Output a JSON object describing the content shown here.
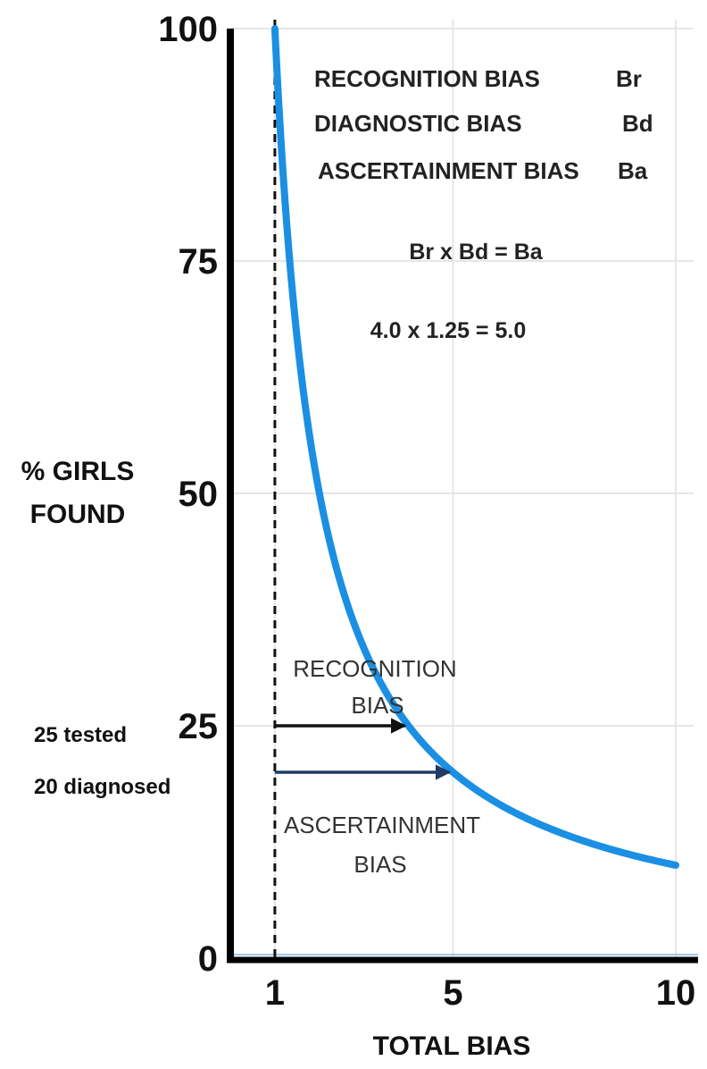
{
  "chart_data": {
    "type": "line",
    "xlabel": "TOTAL BIAS",
    "ylabel_lines": [
      "% GIRLS",
      "FOUND"
    ],
    "xlim": [
      0,
      10
    ],
    "ylim": [
      0,
      100
    ],
    "x_ticks": [
      1,
      5,
      10
    ],
    "y_ticks": [
      0,
      25,
      50,
      75,
      100
    ],
    "grid": true,
    "series": [
      {
        "curve": "y = 100 / x",
        "color": "#1a8fe3",
        "x": [
          1,
          1.25,
          1.5,
          2,
          2.5,
          3,
          4,
          5,
          6,
          7,
          8,
          9,
          10
        ],
        "y": [
          100,
          80,
          66.7,
          50,
          40,
          33.3,
          25,
          20,
          16.7,
          14.3,
          12.5,
          11.1,
          10
        ]
      }
    ],
    "reference_line": {
      "x": 1,
      "style": "dashed"
    },
    "legend_items": [
      {
        "label": "RECOGNITION BIAS",
        "symbol": "Br"
      },
      {
        "label": "DIAGNOSTIC BIAS",
        "symbol": "Bd"
      },
      {
        "label": "ASCERTAINMENT BIAS",
        "symbol": "Ba"
      }
    ],
    "formula": "Br x Bd = Ba",
    "example": "4.0 x 1.25 = 5.0",
    "arrows": [
      {
        "from_x": 1,
        "to_x": 4,
        "y": 25,
        "label_lines": [
          "RECOGNITION",
          "BIAS"
        ],
        "color": "#111111"
      },
      {
        "from_x": 1,
        "to_x": 5,
        "y": 20,
        "label_lines": [
          "ASCERTAINMENT",
          "BIAS"
        ],
        "color": "#1f3b66"
      }
    ],
    "side_labels": [
      {
        "text": "25 tested",
        "y": 25
      },
      {
        "text": "20 diagnosed",
        "y": 20
      }
    ]
  }
}
